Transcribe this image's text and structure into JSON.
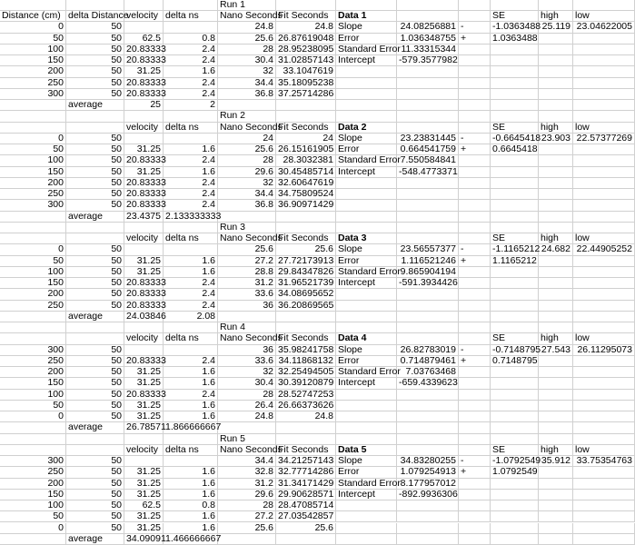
{
  "runs": [
    {
      "title": "Run 1",
      "header": [
        "Distance (cm)",
        "delta Distance",
        "velocity",
        "delta ns",
        "Nano Seconds",
        "Fit Seconds",
        "Data 1",
        null,
        null,
        "SE",
        "high",
        "low"
      ],
      "rows": [
        [
          "0",
          "50",
          null,
          null,
          "24.8",
          "24.8",
          "Slope",
          "24.08256881",
          "-",
          "-1.0363488",
          "25.119",
          "23.04622005"
        ],
        [
          "50",
          "50",
          "62.5",
          "0.8",
          "25.6",
          "26.87619048",
          "Error",
          "1.036348755",
          "+",
          "1.0363488"
        ],
        [
          "100",
          "50",
          "20.83333",
          "2.4",
          "28",
          "28.95238095",
          "Standard Error",
          "11.33315344"
        ],
        [
          "150",
          "50",
          "20.83333",
          "2.4",
          "30.4",
          "31.02857143",
          "Intercept",
          "-579.3577982"
        ],
        [
          "200",
          "50",
          "31.25",
          "1.6",
          "32",
          "33.1047619"
        ],
        [
          "250",
          "50",
          "20.83333",
          "2.4",
          "34.4",
          "35.18095238"
        ],
        [
          "300",
          "50",
          "20.83333",
          "2.4",
          "36.8",
          "37.25714286"
        ]
      ],
      "average": [
        null,
        "average",
        "25",
        "2"
      ]
    },
    {
      "title": "Run 2",
      "header": [
        null,
        null,
        "velocity",
        "delta ns",
        "Nano Seconds",
        "Fit Seconds",
        "Data 2",
        null,
        null,
        "SE",
        "high",
        "low"
      ],
      "rows": [
        [
          "0",
          "50",
          null,
          null,
          "24",
          "24",
          "Slope",
          "23.23831445",
          "-",
          "-0.6645418",
          "23.903",
          "22.57377269"
        ],
        [
          "50",
          "50",
          "31.25",
          "1.6",
          "25.6",
          "26.15161905",
          "Error",
          "0.664541759",
          "+",
          "0.6645418"
        ],
        [
          "100",
          "50",
          "20.83333",
          "2.4",
          "28",
          "28.3032381",
          "Standard Error",
          "7.550584841"
        ],
        [
          "150",
          "50",
          "31.25",
          "1.6",
          "29.6",
          "30.45485714",
          "Intercept",
          "-548.4773371"
        ],
        [
          "200",
          "50",
          "20.83333",
          "2.4",
          "32",
          "32.60647619"
        ],
        [
          "250",
          "50",
          "20.83333",
          "2.4",
          "34.4",
          "34.75809524"
        ],
        [
          "300",
          "50",
          "20.83333",
          "2.4",
          "36.8",
          "36.90971429"
        ]
      ],
      "average": [
        null,
        "average",
        "23.4375",
        "2.133333333"
      ]
    },
    {
      "title": "Run 3",
      "header": [
        null,
        null,
        "velocity",
        "delta ns",
        "Nano Seconds",
        "Fit Seconds",
        "Data 3",
        null,
        null,
        "SE",
        "high",
        "low"
      ],
      "rows": [
        [
          "0",
          "50",
          null,
          null,
          "25.6",
          "25.6",
          "Slope",
          "23.56557377",
          "-",
          "-1.1165212",
          "24.682",
          "22.44905252"
        ],
        [
          "50",
          "50",
          "31.25",
          "1.6",
          "27.2",
          "27.72173913",
          "Error",
          "1.116521246",
          "+",
          "1.1165212"
        ],
        [
          "100",
          "50",
          "31.25",
          "1.6",
          "28.8",
          "29.84347826",
          "Standard Error",
          "9.865904194"
        ],
        [
          "150",
          "50",
          "20.83333",
          "2.4",
          "31.2",
          "31.96521739",
          "Intercept",
          "-591.3934426"
        ],
        [
          "200",
          "50",
          "20.83333",
          "2.4",
          "33.6",
          "34.08695652"
        ],
        [
          "250",
          "50",
          "20.83333",
          "2.4",
          "36",
          "36.20869565"
        ]
      ],
      "average": [
        null,
        "average",
        "24.03846",
        "2.08"
      ]
    },
    {
      "title": "Run 4",
      "header": [
        null,
        null,
        "velocity",
        "delta ns",
        "Nano Seconds",
        "Fit Seconds",
        "Data 4",
        null,
        null,
        "SE",
        "high",
        "low"
      ],
      "rows": [
        [
          "300",
          "50",
          null,
          null,
          "36",
          "35.98241758",
          "Slope",
          "26.82783019",
          "-",
          "-0.7148795",
          "27.543",
          "26.11295073"
        ],
        [
          "250",
          "50",
          "20.83333",
          "2.4",
          "33.6",
          "34.11868132",
          "Error",
          "0.714879461",
          "+",
          "0.7148795"
        ],
        [
          "200",
          "50",
          "31.25",
          "1.6",
          "32",
          "32.25494505",
          "Standard Error",
          "7.03763468"
        ],
        [
          "150",
          "50",
          "31.25",
          "1.6",
          "30.4",
          "30.39120879",
          "Intercept",
          "-659.4339623"
        ],
        [
          "100",
          "50",
          "20.83333",
          "2.4",
          "28",
          "28.52747253"
        ],
        [
          "50",
          "50",
          "31.25",
          "1.6",
          "26.4",
          "26.66373626"
        ],
        [
          "0",
          "50",
          "31.25",
          "1.6",
          "24.8",
          "24.8"
        ]
      ],
      "average": [
        null,
        "average",
        "26.78571",
        "1.866666667"
      ]
    },
    {
      "title": "Run 5",
      "header": [
        null,
        null,
        "velocity",
        "delta ns",
        "Nano Seconds",
        "Fit Seconds",
        "Data 5",
        null,
        null,
        "SE",
        "high",
        "low"
      ],
      "rows": [
        [
          "300",
          "50",
          null,
          null,
          "34.4",
          "34.21257143",
          "Slope",
          "34.83280255",
          "-",
          "-1.0792549",
          "35.912",
          "33.75354763"
        ],
        [
          "250",
          "50",
          "31.25",
          "1.6",
          "32.8",
          "32.77714286",
          "Error",
          "1.079254913",
          "+",
          "1.0792549"
        ],
        [
          "200",
          "50",
          "31.25",
          "1.6",
          "31.2",
          "31.34171429",
          "Standard Error",
          "8.177957012"
        ],
        [
          "150",
          "50",
          "31.25",
          "1.6",
          "29.6",
          "29.90628571",
          "Intercept",
          "-892.9936306"
        ],
        [
          "100",
          "50",
          "62.5",
          "0.8",
          "28",
          "28.47085714"
        ],
        [
          "50",
          "50",
          "31.25",
          "1.6",
          "27.2",
          "27.03542857"
        ],
        [
          "0",
          "50",
          "31.25",
          "1.6",
          "25.6",
          "25.6"
        ]
      ],
      "average": [
        null,
        "average",
        "34.09091",
        "1.466666667"
      ]
    }
  ]
}
